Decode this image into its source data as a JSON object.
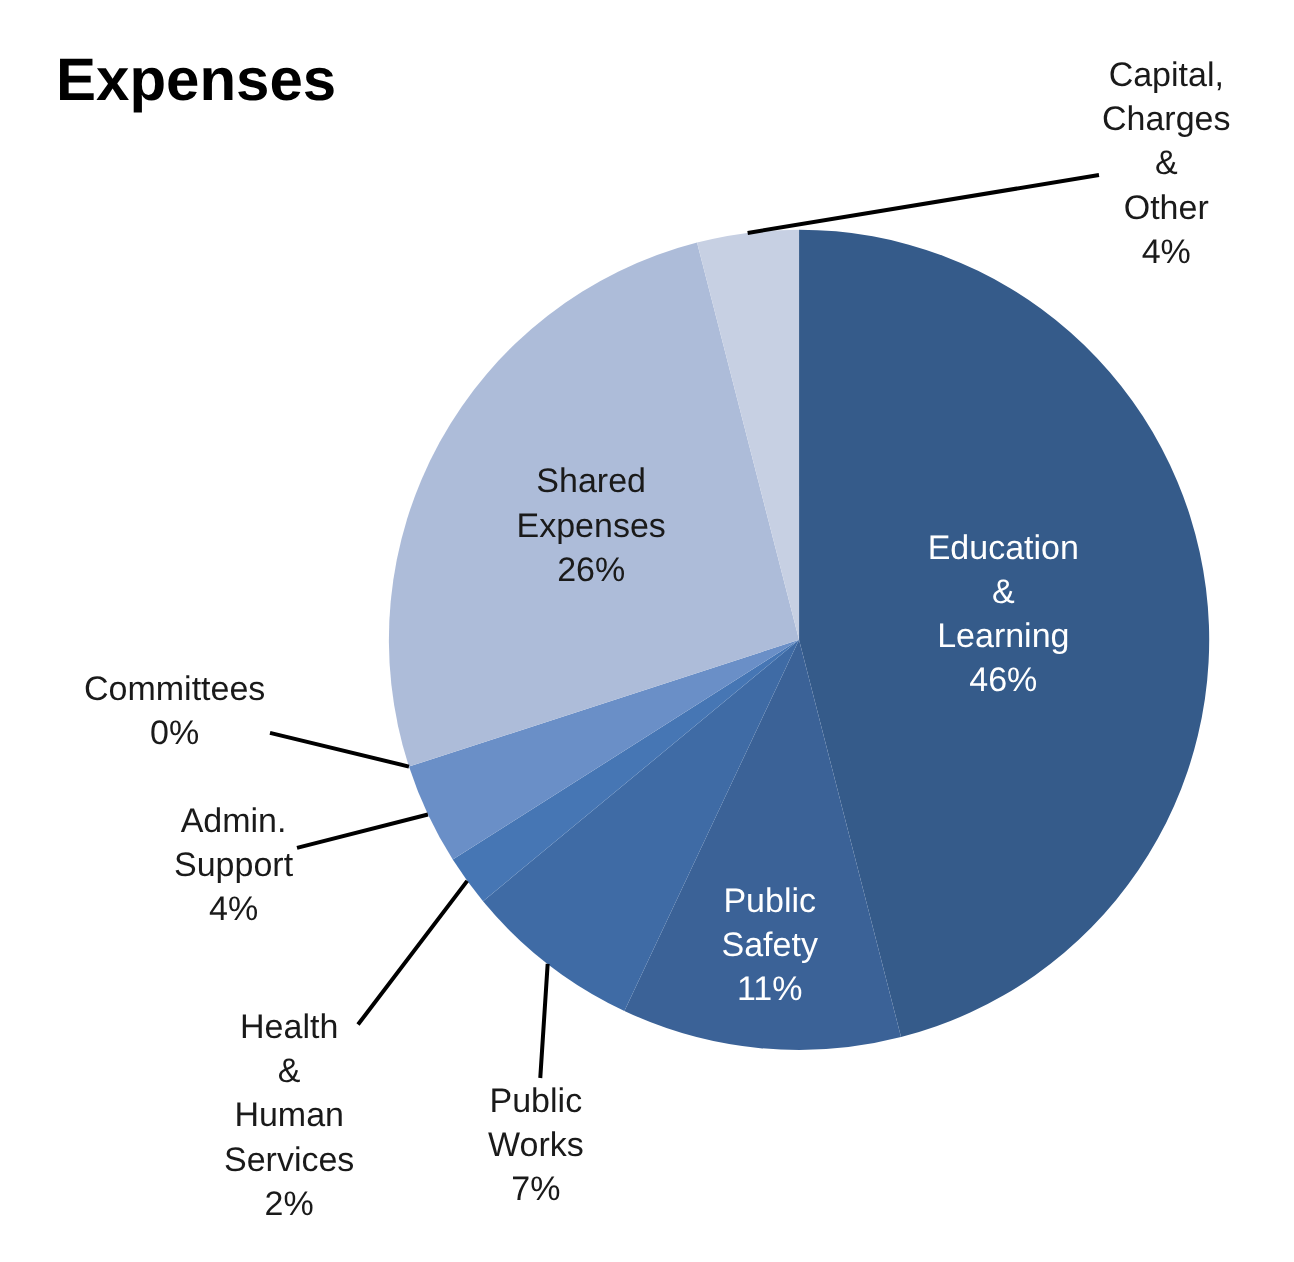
{
  "chart_data": {
    "type": "pie",
    "title": "Expenses",
    "categories": [
      "Education & Learning",
      "Public Safety",
      "Public Works",
      "Health & Human Services",
      "Admin. Support",
      "Committees",
      "Shared Expenses",
      "Capital, Charges & Other"
    ],
    "values": [
      46,
      11,
      7,
      2,
      4,
      0,
      26,
      4
    ],
    "value_labels": [
      "46%",
      "11%",
      "7%",
      "2%",
      "4%",
      "0%",
      "26%",
      "4%"
    ],
    "colors": [
      "#355b8a",
      "#3b6297",
      "#3f6ba5",
      "#4676b4",
      "#6a8fc7",
      "#5a80bc",
      "#adbcd9",
      "#c7d0e3"
    ],
    "legend": false
  }
}
